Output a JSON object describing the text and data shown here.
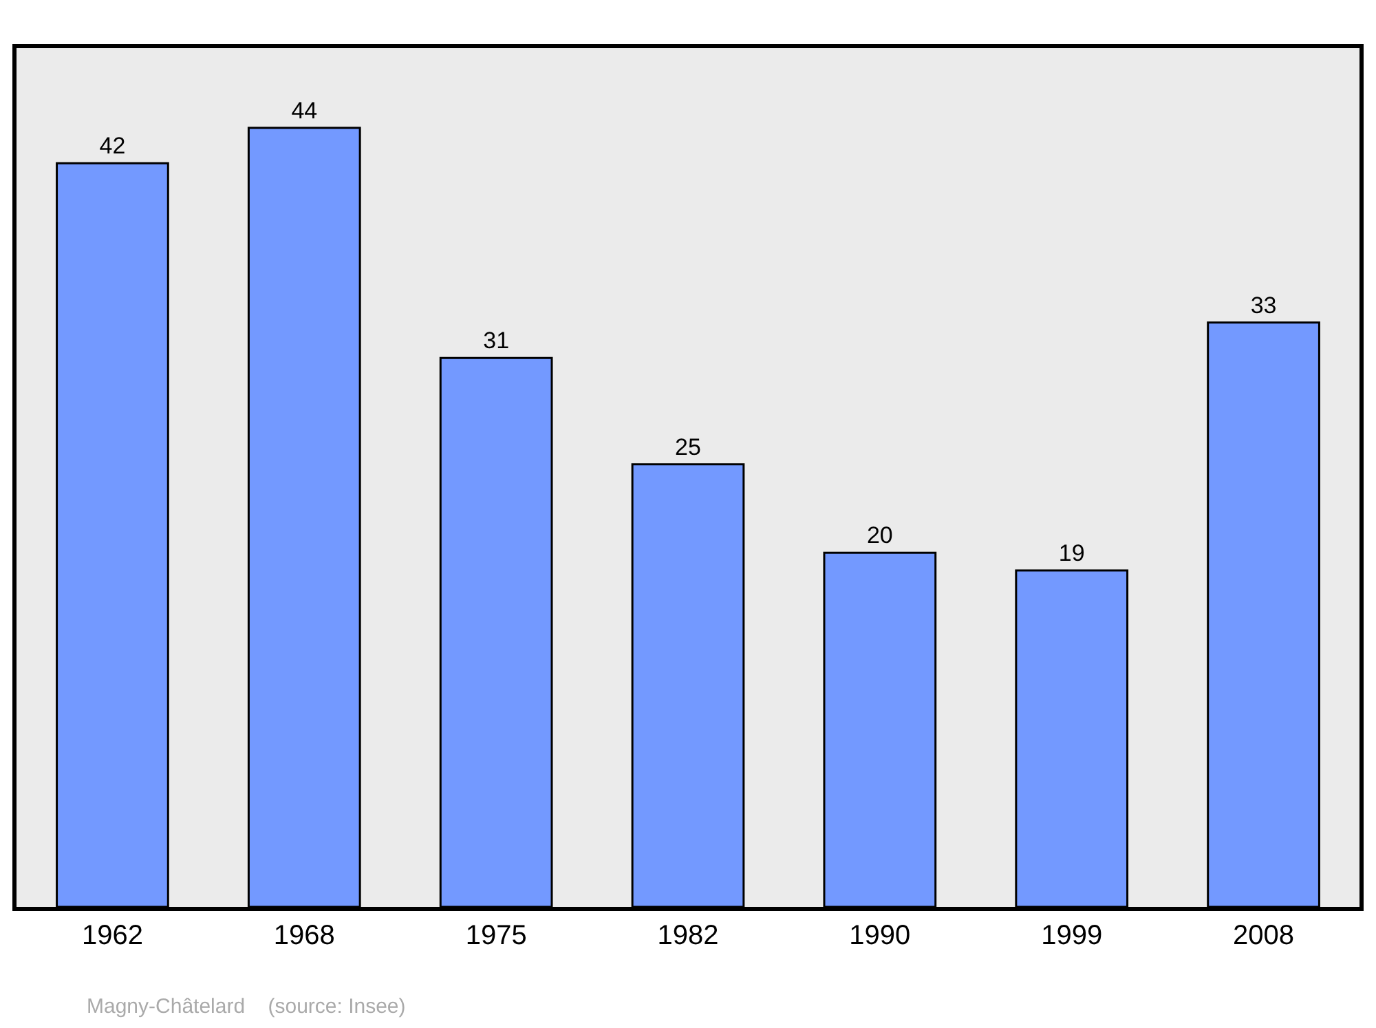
{
  "chart_data": {
    "type": "bar",
    "categories": [
      "1962",
      "1968",
      "1975",
      "1982",
      "1990",
      "1999",
      "2008"
    ],
    "values": [
      42,
      44,
      31,
      25,
      20,
      19,
      33
    ],
    "color": "#7399ff",
    "data_labels": true,
    "ylim": [
      0,
      48.5
    ],
    "tick_labels": "x",
    "annotations": [
      "Magny-Châtelard    (source: Insee)"
    ]
  }
}
